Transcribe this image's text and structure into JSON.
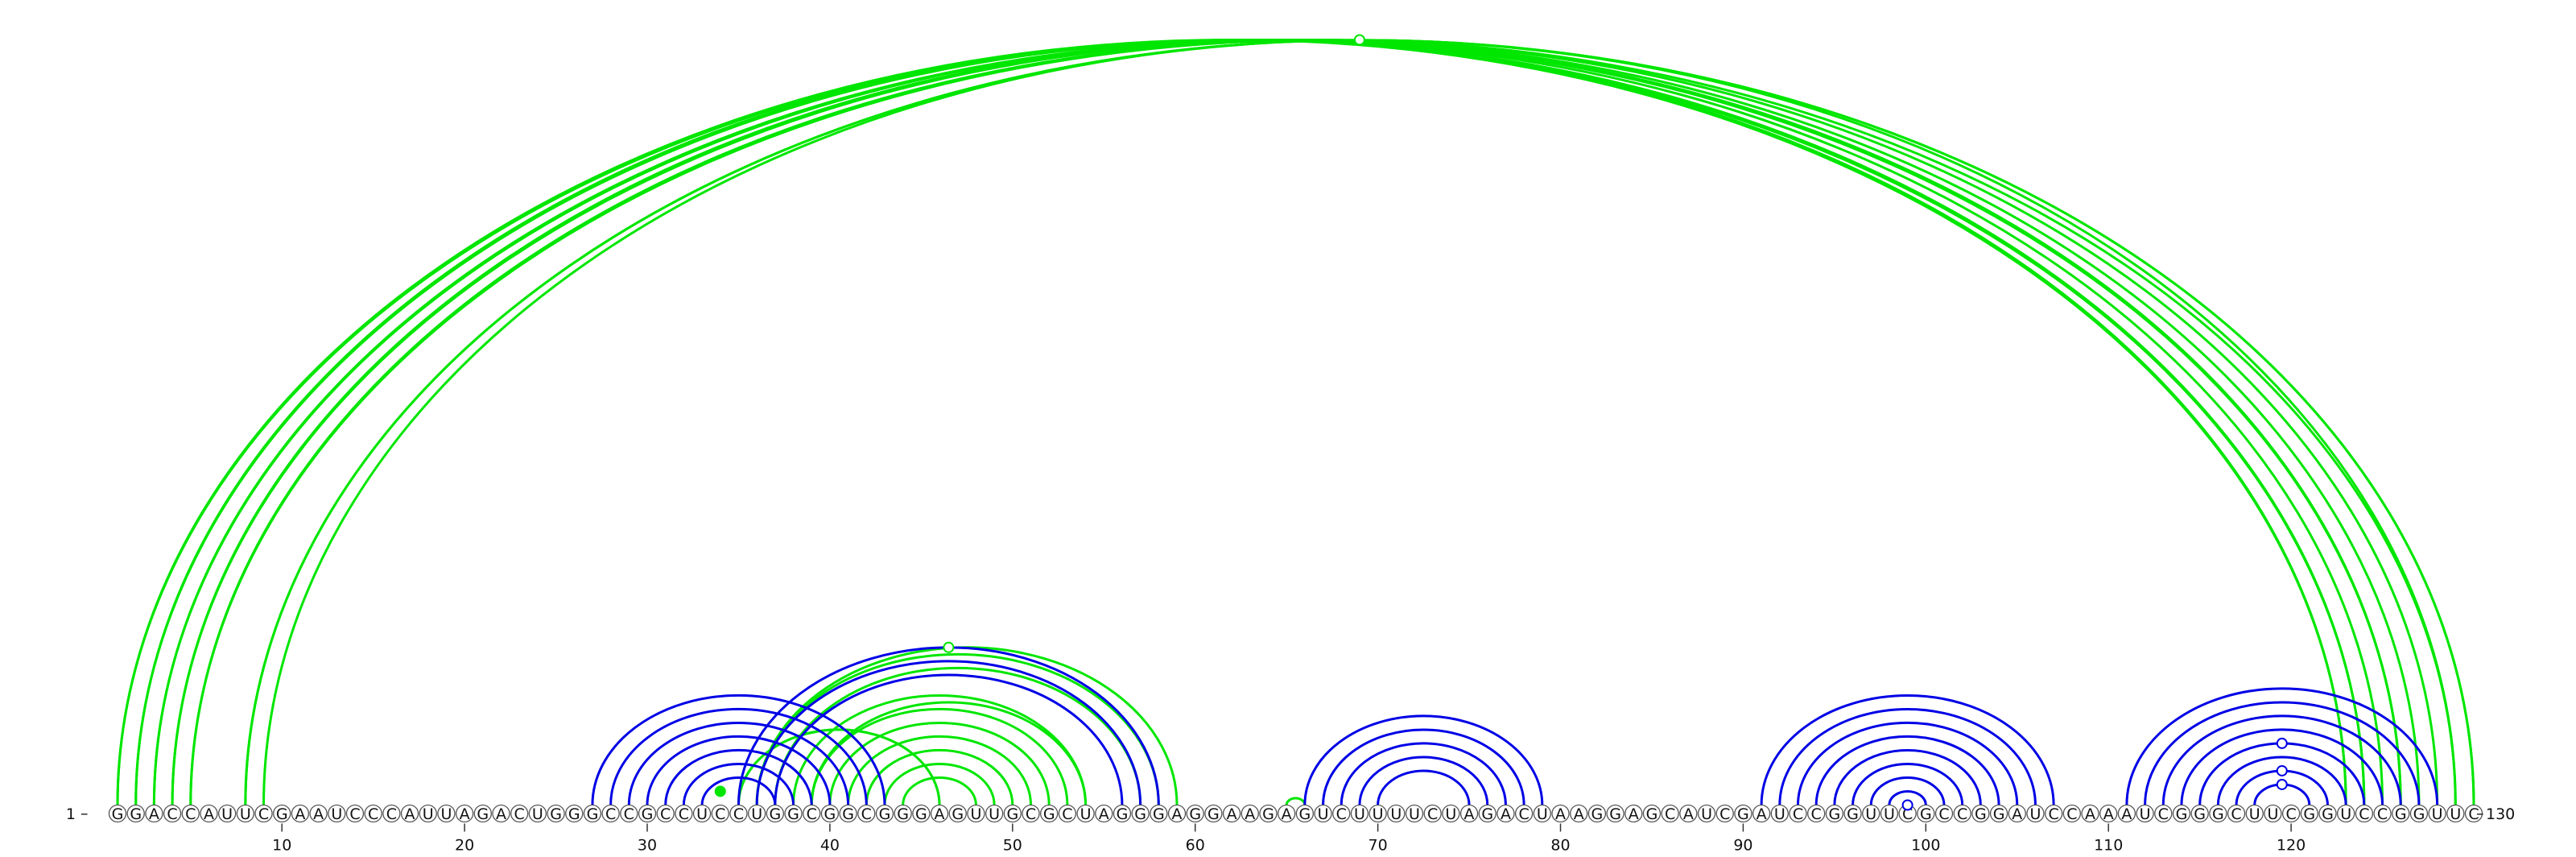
{
  "sequence": {
    "text": "GGACCAUUCGAAUCCCAUUAGACUGGGCCGCCUCCUGGCGGCGGGAGUUGCGCUAGGGAGGAAGAGUCUUUUCUAGACUAAGGAGCAUCGAUCCGGUUCGCCGGAUCCAAAUCGGGCUUCGGUCCGGUUC",
    "start_label": "1",
    "end_label": "130"
  },
  "axis": {
    "ticks": [
      "10",
      "20",
      "30",
      "40",
      "50",
      "60",
      "70",
      "80",
      "90",
      "100",
      "110",
      "120"
    ]
  },
  "colors": {
    "top_arcs": "#00e600",
    "bottom_arcs": "#0000e6",
    "nucleotide_stroke": "#555555",
    "nucleotide_fill": "#ffffff"
  },
  "chart_data": {
    "type": "arc_diagram",
    "length": 130,
    "top_pairs": [
      [
        1,
        123
      ],
      [
        1,
        124
      ],
      [
        2,
        123
      ],
      [
        2,
        124
      ],
      [
        3,
        125
      ],
      [
        3,
        126
      ],
      [
        4,
        126
      ],
      [
        4,
        127
      ],
      [
        5,
        128
      ],
      [
        5,
        129
      ],
      [
        36,
        58
      ],
      [
        36,
        59
      ],
      [
        37,
        57
      ],
      [
        38,
        54
      ],
      [
        39,
        53
      ],
      [
        39,
        54
      ],
      [
        40,
        52
      ],
      [
        41,
        51
      ],
      [
        42,
        50
      ],
      [
        43,
        49
      ],
      [
        44,
        48
      ],
      [
        35,
        46
      ],
      [
        35,
        46
      ],
      [
        65,
        66
      ],
      [
        8,
        130
      ],
      [
        8,
        130
      ],
      [
        9,
        129
      ]
    ],
    "bottom_pairs": [
      [
        27,
        43
      ],
      [
        28,
        42
      ],
      [
        29,
        41
      ],
      [
        30,
        40
      ],
      [
        31,
        39
      ],
      [
        32,
        38
      ],
      [
        33,
        37
      ],
      [
        35,
        58
      ],
      [
        36,
        57
      ],
      [
        37,
        56
      ],
      [
        66,
        79
      ],
      [
        67,
        78
      ],
      [
        68,
        77
      ],
      [
        69,
        76
      ],
      [
        70,
        75
      ],
      [
        91,
        107
      ],
      [
        92,
        106
      ],
      [
        93,
        105
      ],
      [
        94,
        104
      ],
      [
        95,
        103
      ],
      [
        96,
        102
      ],
      [
        97,
        101
      ],
      [
        98,
        100
      ],
      [
        111,
        128
      ],
      [
        112,
        127
      ],
      [
        113,
        126
      ],
      [
        114,
        125
      ],
      [
        115,
        124
      ],
      [
        116,
        123
      ],
      [
        117,
        122
      ],
      [
        118,
        121
      ]
    ],
    "markers": [
      {
        "side": "top",
        "pair": [
          8,
          130
        ],
        "style": "open"
      },
      {
        "side": "top",
        "pair": [
          35,
          58
        ],
        "style": "open"
      },
      {
        "side": "bottom",
        "pair": [
          99,
          99
        ],
        "style": "open"
      },
      {
        "side": "bottom",
        "pair": [
          118,
          121
        ],
        "style": "open"
      },
      {
        "side": "bottom",
        "pair": [
          117,
          122
        ],
        "style": "open"
      },
      {
        "side": "bottom",
        "pair": [
          115,
          124
        ],
        "style": "open"
      },
      {
        "side": "top",
        "pair": [
          33,
          35
        ],
        "style": "filled"
      }
    ]
  }
}
